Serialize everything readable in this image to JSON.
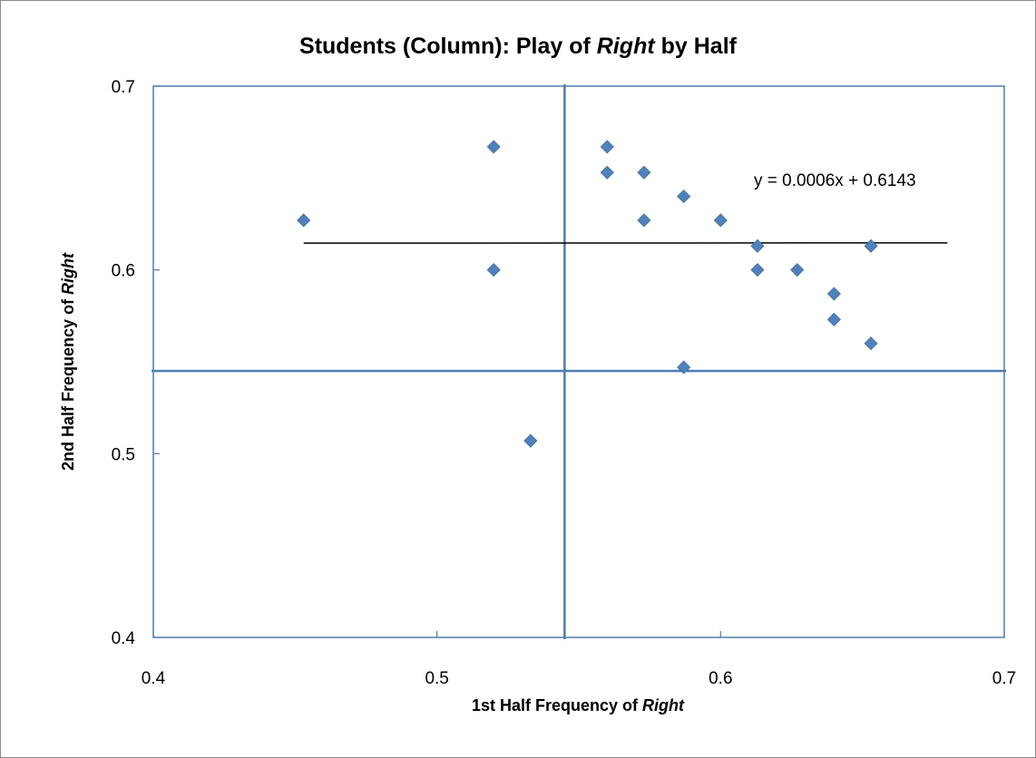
{
  "chart_data": {
    "type": "scatter",
    "title": {
      "before": "Students (Column): Play of ",
      "italic": "Right",
      "after": " by Half"
    },
    "xlabel": {
      "before": "1st Half Frequency of ",
      "italic": "Right",
      "after": ""
    },
    "ylabel": {
      "before": "2nd Half Frequency of ",
      "italic": "Right",
      "after": ""
    },
    "xlim": [
      0.4,
      0.7
    ],
    "ylim": [
      0.4,
      0.7
    ],
    "x_ticks": [
      "0.4",
      "0.5",
      "0.6",
      "0.7"
    ],
    "y_ticks": [
      "0.4",
      "0.5",
      "0.6",
      "0.7"
    ],
    "tick_values": [
      0.4,
      0.5,
      0.6,
      0.7
    ],
    "grid": false,
    "legend": "none",
    "marker_color": "#4f81bd",
    "reference_line_color": "#4a7ebb",
    "points": [
      {
        "x": 0.453,
        "y": 0.627
      },
      {
        "x": 0.52,
        "y": 0.667
      },
      {
        "x": 0.52,
        "y": 0.6
      },
      {
        "x": 0.533,
        "y": 0.507
      },
      {
        "x": 0.56,
        "y": 0.667
      },
      {
        "x": 0.56,
        "y": 0.653
      },
      {
        "x": 0.573,
        "y": 0.653
      },
      {
        "x": 0.573,
        "y": 0.627
      },
      {
        "x": 0.587,
        "y": 0.64
      },
      {
        "x": 0.587,
        "y": 0.547
      },
      {
        "x": 0.6,
        "y": 0.627
      },
      {
        "x": 0.613,
        "y": 0.613
      },
      {
        "x": 0.613,
        "y": 0.6
      },
      {
        "x": 0.627,
        "y": 0.6
      },
      {
        "x": 0.64,
        "y": 0.587
      },
      {
        "x": 0.64,
        "y": 0.573
      },
      {
        "x": 0.653,
        "y": 0.613
      },
      {
        "x": 0.653,
        "y": 0.56
      }
    ],
    "reference_lines": {
      "x": 0.545,
      "y": 0.545
    },
    "trendline": {
      "equation": "y = 0.0006x + 0.6143",
      "slope": 0.0006,
      "intercept": 0.6143,
      "x_range": [
        0.453,
        0.68
      ]
    }
  }
}
